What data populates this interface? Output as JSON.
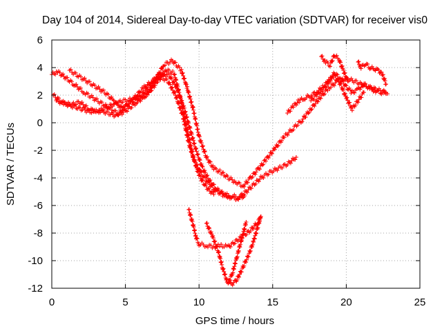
{
  "chart_data": {
    "type": "scatter",
    "title": "Day 104 of 2014, Sidereal Day-to-day VTEC variation (SDTVAR) for receiver vis0",
    "xlabel": "GPS time / hours",
    "ylabel": "SDTVAR / TECUs",
    "xlim": [
      0,
      25
    ],
    "ylim": [
      -12,
      6
    ],
    "xticks": [
      "0",
      "5",
      "10",
      "15",
      "20",
      "25"
    ],
    "yticks": [
      "6",
      "4",
      "2",
      "0",
      "-2",
      "-4",
      "-6",
      "-8",
      "-10",
      "-12"
    ],
    "grid": true,
    "marker": "+",
    "color": "#ff0000",
    "series": [
      {
        "x": [
          0.0,
          0.4,
          0.9,
          1.5,
          2.2,
          2.8,
          3.4,
          4.0,
          4.6,
          5.2,
          5.8,
          6.4,
          7.0,
          7.6,
          8.2,
          8.8,
          9.2,
          9.6,
          10.0,
          10.5,
          11.0,
          11.5,
          12.0,
          12.5,
          13.0,
          13.5,
          14.0,
          14.6,
          15.2,
          15.8,
          16.4,
          17.0,
          17.6,
          18.2,
          18.8,
          19.4,
          20.0,
          20.6,
          21.2,
          21.8,
          22.4,
          22.7
        ],
        "y": [
          3.5,
          3.7,
          3.3,
          2.8,
          2.2,
          1.8,
          1.4,
          1.0,
          0.6,
          1.0,
          1.5,
          2.0,
          3.0,
          4.2,
          4.5,
          3.8,
          2.5,
          1.0,
          -1.0,
          -2.5,
          -3.3,
          -3.6,
          -4.0,
          -4.3,
          -4.6,
          -4.0,
          -3.4,
          -2.6,
          -1.8,
          -1.0,
          -0.4,
          0.2,
          1.0,
          1.8,
          2.5,
          3.0,
          3.2,
          3.0,
          2.7,
          2.5,
          2.3,
          2.2
        ]
      },
      {
        "x": [
          0.3,
          0.8,
          1.4,
          2.0,
          2.6,
          3.2,
          3.8,
          4.4,
          5.0,
          5.6,
          6.2,
          6.8,
          7.4,
          8.0,
          8.5,
          9.0,
          9.4,
          9.8,
          10.2,
          10.7,
          11.2,
          11.7,
          12.2,
          12.7,
          13.2,
          13.7,
          14.2,
          14.8,
          15.4,
          16.0,
          16.6
        ],
        "y": [
          1.6,
          1.4,
          1.2,
          1.0,
          0.8,
          0.9,
          0.7,
          0.5,
          1.2,
          1.8,
          2.5,
          3.0,
          3.6,
          3.4,
          2.5,
          1.0,
          -0.5,
          -2.0,
          -3.2,
          -4.2,
          -4.8,
          -5.2,
          -5.3,
          -5.4,
          -5.0,
          -4.5,
          -4.0,
          -3.6,
          -3.3,
          -3.0,
          -2.5
        ]
      },
      {
        "x": [
          0.1,
          0.7,
          1.3,
          1.9,
          2.5,
          3.1,
          3.7,
          4.3,
          4.9,
          5.5,
          6.1,
          6.7,
          7.3,
          7.9,
          8.4,
          8.9,
          9.3,
          9.7,
          10.1,
          10.6,
          11.1,
          11.6,
          12.1,
          12.6,
          13.1
        ],
        "y": [
          2.0,
          1.5,
          1.3,
          1.5,
          1.0,
          0.8,
          1.1,
          1.4,
          1.6,
          1.7,
          2.0,
          2.8,
          3.4,
          3.0,
          2.0,
          0.5,
          -1.5,
          -2.8,
          -3.6,
          -4.3,
          -4.9,
          -5.2,
          -5.4,
          -5.5,
          -5.3
        ]
      },
      {
        "x": [
          1.2,
          1.8,
          2.4,
          3.0,
          3.6,
          4.2,
          4.8,
          5.4,
          6.0,
          6.6,
          7.2,
          7.8,
          8.3,
          8.7,
          9.0,
          9.3,
          9.6,
          9.9,
          10.2,
          10.6,
          11.0
        ],
        "y": [
          3.8,
          3.4,
          3.0,
          2.6,
          2.2,
          1.6,
          1.0,
          1.5,
          1.8,
          2.2,
          3.0,
          3.8,
          3.6,
          2.0,
          0.5,
          -1.0,
          -2.5,
          -3.5,
          -4.2,
          -4.8,
          -5.2
        ]
      },
      {
        "x": [
          9.3,
          9.6,
          9.8,
          10.0,
          10.5,
          11.0,
          11.5,
          12.0,
          12.5,
          13.0,
          13.5,
          14.0,
          14.2
        ],
        "y": [
          -6.3,
          -7.4,
          -8.3,
          -8.8,
          -8.9,
          -9.0,
          -8.9,
          -9.0,
          -8.6,
          -8.2,
          -7.8,
          -7.2,
          -6.8
        ]
      },
      {
        "x": [
          10.5,
          10.9,
          11.3,
          11.6,
          11.9,
          12.2,
          12.5,
          12.8,
          13.1,
          13.4,
          13.7,
          14.0,
          14.2
        ],
        "y": [
          -7.3,
          -8.2,
          -9.3,
          -10.5,
          -11.5,
          -11.7,
          -11.5,
          -10.9,
          -10.2,
          -9.5,
          -8.6,
          -7.5,
          -6.8
        ],
        "_note": "second lower arc"
      },
      {
        "x": [
          12.0,
          12.3,
          12.6,
          12.9,
          13.2
        ],
        "y": [
          -11.6,
          -10.8,
          -9.6,
          -8.4,
          -7.2
        ]
      },
      {
        "x": [
          16.0,
          16.4,
          16.8,
          17.2,
          17.6,
          18.0,
          18.4,
          18.8,
          19.2,
          19.6,
          20.0,
          20.4,
          20.8,
          21.2
        ],
        "y": [
          0.7,
          1.2,
          1.6,
          1.8,
          2.0,
          2.2,
          2.6,
          3.0,
          3.4,
          2.8,
          1.8,
          1.0,
          1.6,
          2.2
        ]
      },
      {
        "x": [
          17.6,
          18.0,
          18.4,
          18.8,
          19.2,
          19.6,
          20.0,
          20.4,
          20.8,
          21.2,
          21.6,
          22.0,
          22.4,
          22.8
        ],
        "y": [
          1.6,
          2.0,
          2.4,
          3.0,
          3.6,
          3.2,
          2.6,
          2.2,
          2.4,
          2.8,
          2.5,
          2.3,
          2.2,
          2.1
        ]
      },
      {
        "x": [
          18.3,
          18.6,
          18.9,
          19.2,
          19.5,
          19.8,
          20.1
        ],
        "y": [
          4.8,
          4.4,
          4.2,
          4.9,
          4.6,
          3.8,
          3.0
        ]
      },
      {
        "x": [
          20.8,
          21.0,
          21.3,
          21.6,
          21.9,
          22.2,
          22.5,
          22.7
        ],
        "y": [
          4.4,
          4.0,
          4.3,
          4.0,
          3.9,
          3.8,
          3.4,
          2.8
        ]
      }
    ]
  }
}
